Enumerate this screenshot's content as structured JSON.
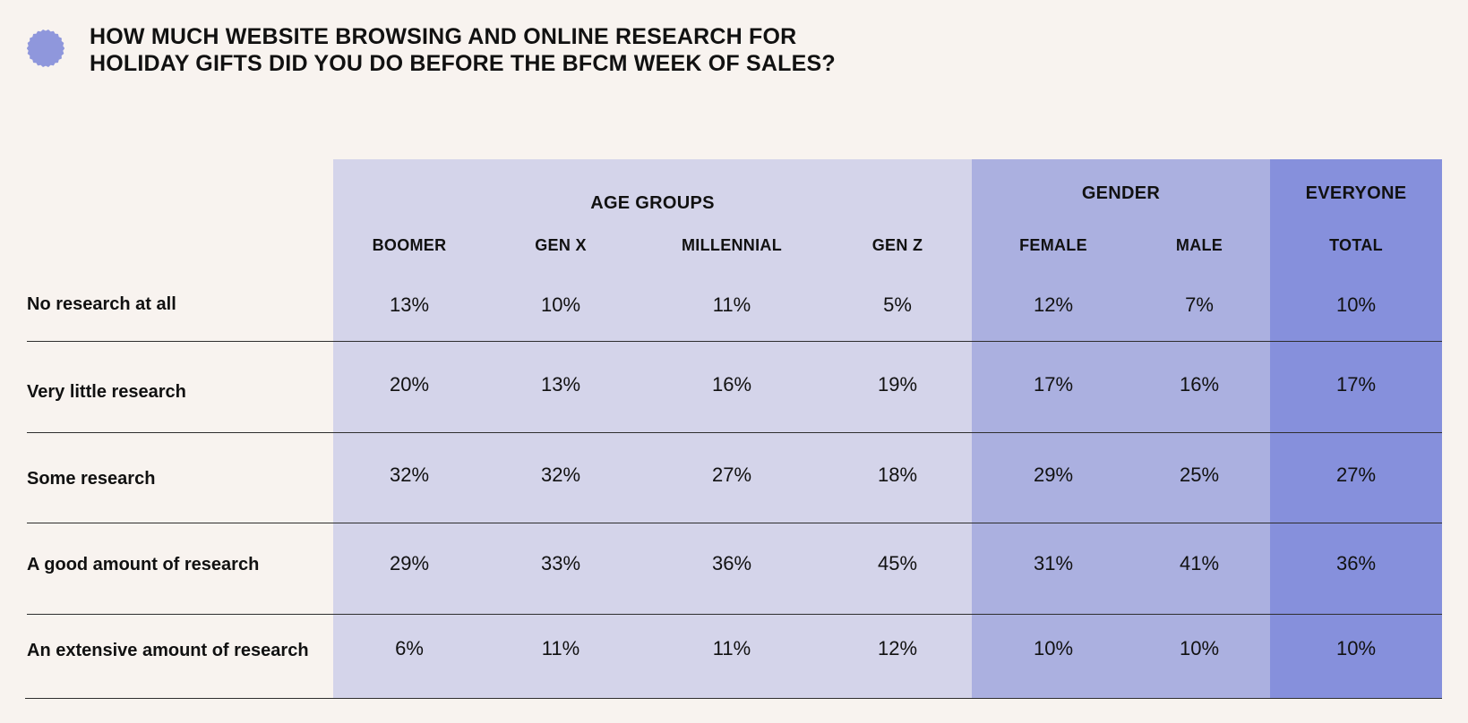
{
  "title": "HOW MUCH WEBSITE BROWSING AND ONLINE RESEARCH FOR\nHOLIDAY GIFTS DID YOU DO BEFORE THE BFCM WEEK OF SALES?",
  "colors": {
    "background": "#f8f3ef",
    "badge": "#8f97dc",
    "age_band": "#d4d4ea",
    "gender_band": "#abb0e0",
    "everyone_band": "#8690dc",
    "text": "#111111"
  },
  "groups": {
    "age": "AGE GROUPS",
    "gender": "GENDER",
    "everyone": "EVERYONE"
  },
  "chart_data": {
    "type": "table",
    "title": "HOW MUCH WEBSITE BROWSING AND ONLINE RESEARCH FOR HOLIDAY GIFTS DID YOU DO BEFORE THE BFCM WEEK OF SALES?",
    "column_groups": [
      {
        "name": "AGE GROUPS",
        "columns": [
          "BOOMER",
          "GEN X",
          "MILLENNIAL",
          "GEN Z"
        ]
      },
      {
        "name": "GENDER",
        "columns": [
          "FEMALE",
          "MALE"
        ]
      },
      {
        "name": "EVERYONE",
        "columns": [
          "TOTAL"
        ]
      }
    ],
    "columns": [
      "BOOMER",
      "GEN X",
      "MILLENNIAL",
      "GEN Z",
      "FEMALE",
      "MALE",
      "TOTAL"
    ],
    "rows": [
      {
        "label": "No research at all",
        "values": [
          "13%",
          "10%",
          "11%",
          "5%",
          "12%",
          "7%",
          "10%"
        ]
      },
      {
        "label": "Very little research",
        "values": [
          "20%",
          "13%",
          "16%",
          "19%",
          "17%",
          "16%",
          "17%"
        ]
      },
      {
        "label": "Some research",
        "values": [
          "32%",
          "32%",
          "27%",
          "18%",
          "29%",
          "25%",
          "27%"
        ]
      },
      {
        "label": "A good amount of research",
        "values": [
          "29%",
          "33%",
          "36%",
          "45%",
          "31%",
          "41%",
          "36%"
        ]
      },
      {
        "label": "An extensive amount of research",
        "values": [
          "6%",
          "11%",
          "11%",
          "12%",
          "10%",
          "10%",
          "10%"
        ]
      }
    ]
  }
}
